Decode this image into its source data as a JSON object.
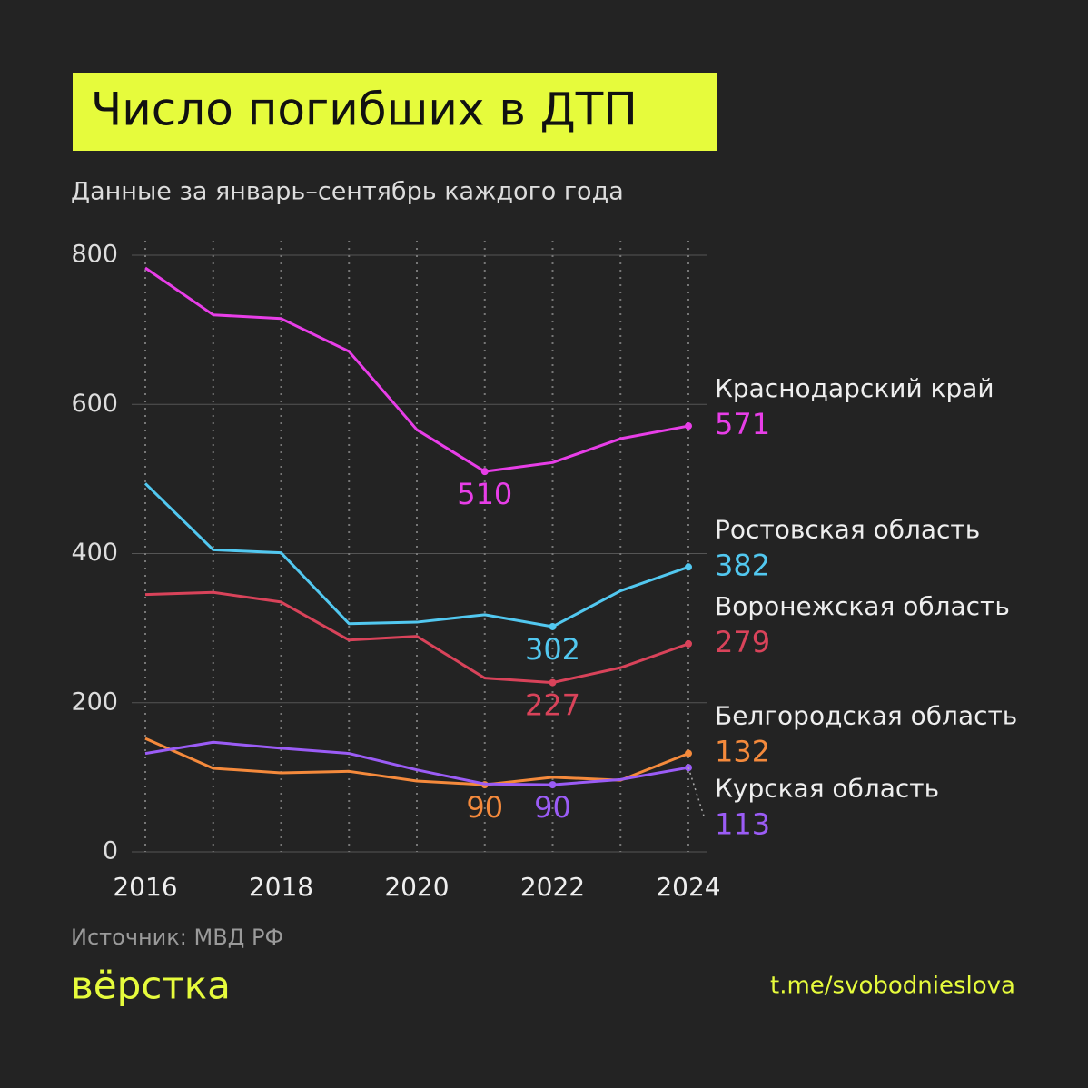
{
  "chart_data": {
    "type": "line",
    "title": "Число погибших в ДТП",
    "subtitle": "Данные за январь–сентябрь каждого года",
    "x": [
      2016,
      2017,
      2018,
      2019,
      2020,
      2021,
      2022,
      2023,
      2024
    ],
    "xlim": [
      2016,
      2024
    ],
    "xticks": [
      2016,
      2018,
      2020,
      2022,
      2024
    ],
    "ylim": [
      0,
      800
    ],
    "yticks": [
      0,
      200,
      400,
      600,
      800
    ],
    "grid": true,
    "label_minimum": true,
    "label_last": true,
    "series": [
      {
        "name": "Краснодарский край",
        "color": "#e83ee8",
        "values": [
          783,
          720,
          715,
          671,
          566,
          510,
          522,
          554,
          571
        ]
      },
      {
        "name": "Ростовская область",
        "color": "#52c8f0",
        "values": [
          494,
          405,
          401,
          306,
          308,
          318,
          302,
          350,
          382
        ]
      },
      {
        "name": "Воронежская область",
        "color": "#d9435a",
        "values": [
          345,
          348,
          335,
          284,
          289,
          233,
          227,
          247,
          279
        ]
      },
      {
        "name": "Белгородская область",
        "color": "#f58a3c",
        "values": [
          152,
          112,
          106,
          108,
          95,
          90,
          100,
          96,
          132
        ]
      },
      {
        "name": "Курская область",
        "color": "#9b5cf6",
        "values": [
          132,
          147,
          139,
          132,
          110,
          91,
          90,
          97,
          113
        ]
      }
    ],
    "source": "Источник: МВД РФ",
    "brand": "вёрстка",
    "link": "t.me/svobodnieslova"
  }
}
